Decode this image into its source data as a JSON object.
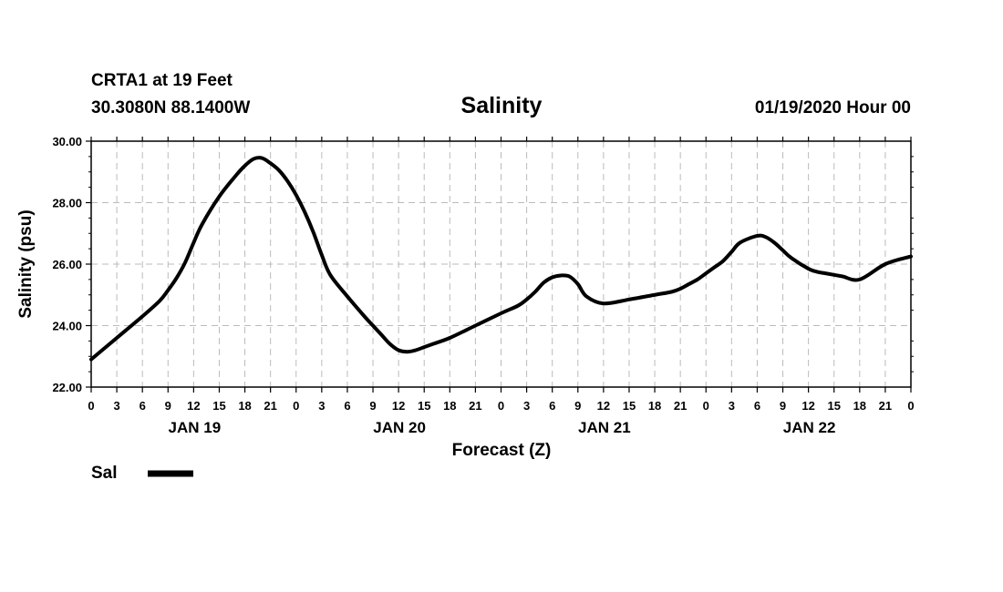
{
  "header": {
    "station": "CRTA1 at 19 Feet",
    "coords": "30.3080N 88.1400W",
    "datetime": "01/19/2020 Hour 00"
  },
  "legend": {
    "label": "Sal"
  },
  "colors": {
    "line": "#000000",
    "grid": "#bbbbbb",
    "axis": "#000000"
  },
  "chart_data": {
    "type": "line",
    "title": "Salinity",
    "xlabel": "Forecast (Z)",
    "ylabel": "Salinity (psu)",
    "xlim": [
      0,
      96
    ],
    "ylim": [
      22,
      30
    ],
    "grid": true,
    "yticks": [
      "22.00",
      "24.00",
      "26.00",
      "28.00",
      "30.00"
    ],
    "ytick_values": [
      22,
      24,
      26,
      28,
      30
    ],
    "xtick_hours": [
      0,
      3,
      6,
      9,
      12,
      15,
      18,
      21,
      24,
      27,
      30,
      33,
      36,
      39,
      42,
      45,
      48,
      51,
      54,
      57,
      60,
      63,
      66,
      69,
      72,
      75,
      78,
      81,
      84,
      87,
      90,
      93,
      96
    ],
    "xtick_labels": [
      "0",
      "3",
      "6",
      "9",
      "12",
      "15",
      "18",
      "21",
      "0",
      "3",
      "6",
      "9",
      "12",
      "15",
      "18",
      "21",
      "0",
      "3",
      "6",
      "9",
      "12",
      "15",
      "18",
      "21",
      "0",
      "3",
      "6",
      "9",
      "12",
      "15",
      "18",
      "21",
      "0"
    ],
    "day_labels": [
      {
        "label": "JAN 19",
        "hour": 12
      },
      {
        "label": "JAN 20",
        "hour": 36
      },
      {
        "label": "JAN 21",
        "hour": 60
      },
      {
        "label": "JAN 22",
        "hour": 84
      }
    ],
    "series": [
      {
        "name": "Sal",
        "x": [
          0,
          3,
          6,
          8,
          9,
          10,
          11,
          12,
          13,
          15,
          17,
          18,
          19,
          20,
          21,
          22,
          23,
          24,
          25,
          26,
          27,
          28,
          30,
          32,
          33,
          34,
          35,
          36,
          37,
          38,
          39,
          40,
          42,
          45,
          48,
          50,
          51,
          52,
          53,
          54,
          55,
          56,
          57,
          58,
          60,
          63,
          66,
          68,
          69,
          70,
          71,
          72,
          73,
          74,
          75,
          76,
          78,
          79,
          80,
          81,
          82,
          84,
          85,
          86,
          87,
          88,
          90,
          93,
          96
        ],
        "y": [
          22.9,
          23.6,
          24.3,
          24.8,
          25.15,
          25.55,
          26.05,
          26.7,
          27.3,
          28.2,
          28.9,
          29.2,
          29.42,
          29.45,
          29.28,
          29.05,
          28.7,
          28.25,
          27.7,
          27.05,
          26.3,
          25.65,
          24.95,
          24.3,
          24.0,
          23.7,
          23.4,
          23.2,
          23.15,
          23.2,
          23.3,
          23.4,
          23.6,
          24.0,
          24.4,
          24.65,
          24.85,
          25.1,
          25.4,
          25.57,
          25.63,
          25.6,
          25.35,
          24.95,
          24.72,
          24.85,
          25.0,
          25.1,
          25.2,
          25.35,
          25.5,
          25.7,
          25.9,
          26.1,
          26.4,
          26.7,
          26.92,
          26.88,
          26.7,
          26.45,
          26.2,
          25.85,
          25.75,
          25.7,
          25.65,
          25.6,
          25.5,
          26.0,
          26.25
        ]
      }
    ]
  }
}
